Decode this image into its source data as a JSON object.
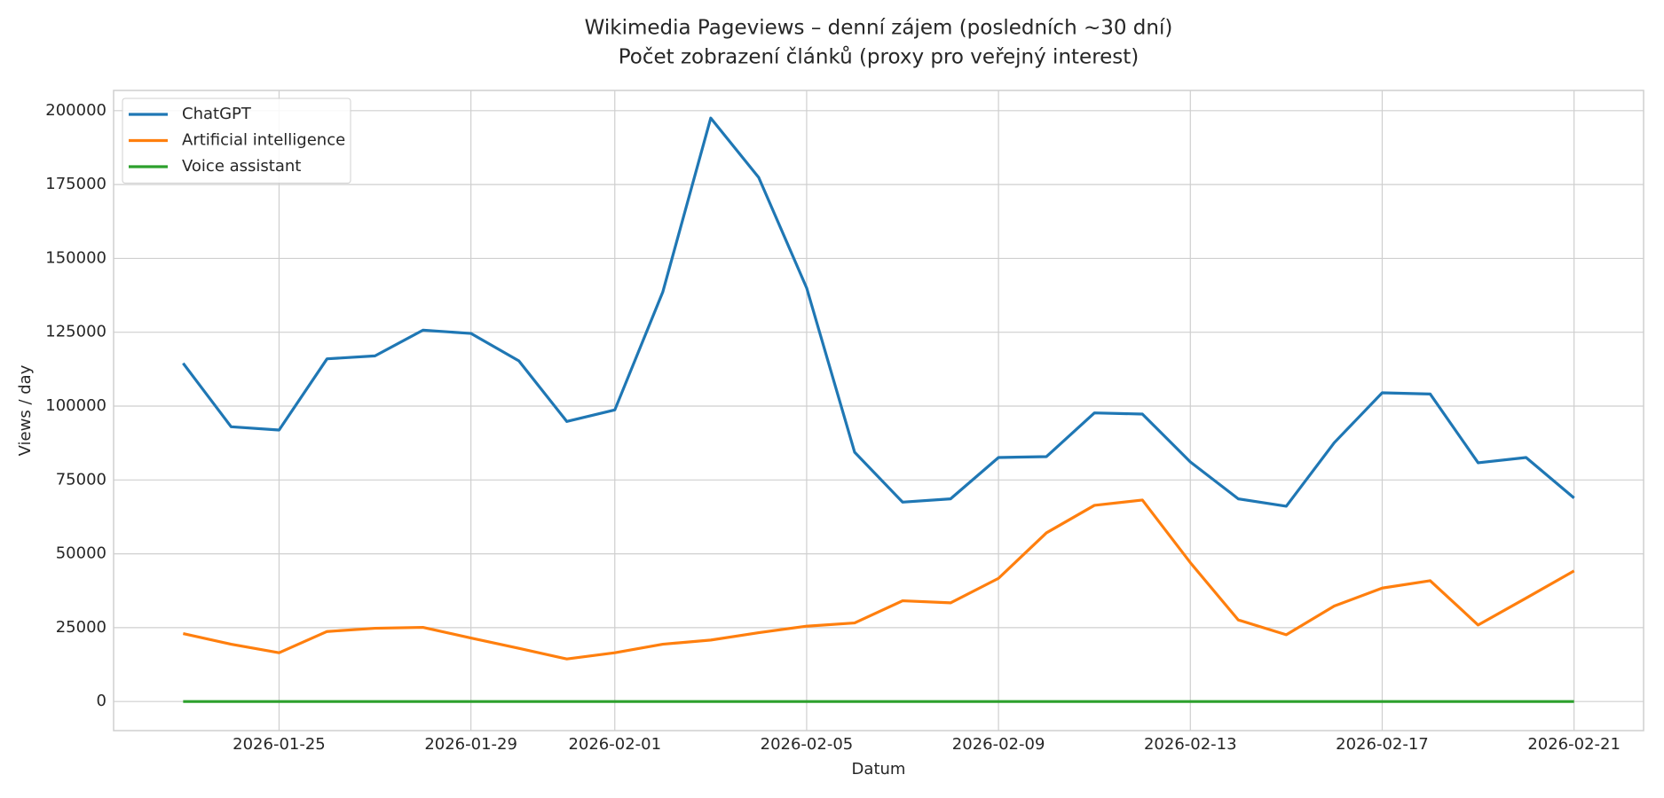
{
  "chart_data": {
    "type": "line",
    "title": "Wikimedia Pageviews – denní zájem (posledních ~30 dní)",
    "subtitle": "Počet zobrazení článků (proxy pro veřejný interest)",
    "x_label": "Datum",
    "y_label": "Views / day",
    "x": [
      "2026-01-23",
      "2026-01-24",
      "2026-01-25",
      "2026-01-26",
      "2026-01-27",
      "2026-01-28",
      "2026-01-29",
      "2026-01-30",
      "2026-01-31",
      "2026-02-01",
      "2026-02-02",
      "2026-02-03",
      "2026-02-04",
      "2026-02-05",
      "2026-02-06",
      "2026-02-07",
      "2026-02-08",
      "2026-02-09",
      "2026-02-10",
      "2026-02-11",
      "2026-02-12",
      "2026-02-13",
      "2026-02-14",
      "2026-02-15",
      "2026-02-16",
      "2026-02-17",
      "2026-02-18",
      "2026-02-19",
      "2026-02-20",
      "2026-02-21"
    ],
    "series": [
      {
        "name": "ChatGPT",
        "color": "#1f77b4",
        "values": [
          114500,
          93000,
          91900,
          116000,
          117000,
          125700,
          124600,
          115300,
          94800,
          98700,
          138600,
          197500,
          177400,
          140000,
          84400,
          67500,
          68600,
          82600,
          82900,
          97700,
          97300,
          81100,
          68600,
          66100,
          87600,
          104500,
          104100,
          80800,
          82600,
          68900
        ]
      },
      {
        "name": "Artificial intelligence",
        "color": "#ff7f0e",
        "values": [
          23000,
          19400,
          16500,
          23700,
          24800,
          25100,
          21500,
          18000,
          14400,
          16500,
          19400,
          20800,
          23300,
          25500,
          26600,
          34100,
          33400,
          41700,
          57100,
          66400,
          68200,
          47000,
          27600,
          22600,
          32300,
          38400,
          40900,
          25900,
          35000,
          44200
        ]
      },
      {
        "name": "Voice assistant",
        "color": "#2ca02c",
        "values": [
          0,
          0,
          0,
          0,
          0,
          0,
          0,
          0,
          0,
          0,
          0,
          0,
          0,
          0,
          0,
          0,
          0,
          0,
          0,
          0,
          0,
          0,
          0,
          0,
          0,
          0,
          0,
          0,
          0,
          0
        ]
      }
    ],
    "xlim": [
      "2026-01-21T13:12",
      "2026-02-22T10:48"
    ],
    "xticks": [
      "2026-01-25",
      "2026-01-29",
      "2026-02-01",
      "2026-02-05",
      "2026-02-09",
      "2026-02-13",
      "2026-02-17",
      "2026-02-21"
    ],
    "ylim": [
      -9850,
      206850
    ],
    "yticks": [
      0,
      25000,
      50000,
      75000,
      100000,
      125000,
      150000,
      175000,
      200000
    ],
    "grid": true,
    "legend": "upper left"
  }
}
